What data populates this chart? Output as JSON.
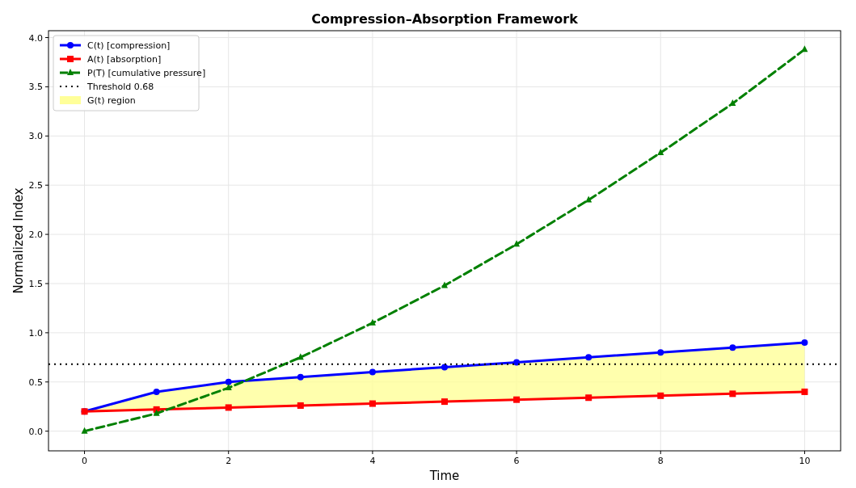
{
  "chart_data": {
    "type": "line",
    "title": "Compression–Absorption Framework",
    "xlabel": "Time",
    "ylabel": "Normalized Index",
    "x": [
      0,
      1,
      2,
      3,
      4,
      5,
      6,
      7,
      8,
      9,
      10
    ],
    "series": [
      {
        "name": "G(t) region",
        "type": "area",
        "color": "#ffff99",
        "values": [
          null,
          null,
          null,
          null,
          null,
          null,
          null,
          null,
          null,
          null,
          null
        ],
        "lower": [
          0.2,
          0.22,
          0.24,
          0.26,
          0.28,
          0.3,
          0.32,
          0.34,
          0.36,
          0.38,
          0.4
        ],
        "upper": [
          0.2,
          0.4,
          0.5,
          0.55,
          0.6,
          0.65,
          0.7,
          0.75,
          0.8,
          0.85,
          0.9
        ]
      },
      {
        "name": "C(t) [compression]",
        "color": "#0000ff",
        "marker": "circle",
        "line_style": "solid",
        "values": [
          0.2,
          0.4,
          0.5,
          0.55,
          0.6,
          0.65,
          0.7,
          0.75,
          0.8,
          0.85,
          0.9
        ]
      },
      {
        "name": "A(t) [absorption]",
        "color": "#ff0000",
        "marker": "square",
        "line_style": "solid",
        "values": [
          0.2,
          0.22,
          0.24,
          0.26,
          0.28,
          0.3,
          0.32,
          0.34,
          0.36,
          0.38,
          0.4
        ]
      },
      {
        "name": "P(T) [cumulative pressure]",
        "color": "#008000",
        "marker": "triangle",
        "line_style": "dashed",
        "values": [
          0,
          0.18,
          0.44,
          0.75,
          1.1,
          1.48,
          1.9,
          2.35,
          2.83,
          3.33,
          3.88
        ]
      }
    ],
    "ref_lines": [
      {
        "axis": "y",
        "value": 0.68,
        "label": "Threshold 0.68",
        "color": "#000000",
        "line_style": "dotted"
      }
    ],
    "xlim": [
      -0.5,
      10.5
    ],
    "xticks": [
      0,
      2,
      4,
      6,
      8,
      10
    ],
    "ylim": [
      -0.2,
      4.07
    ],
    "yticks": [
      {
        "value": 0,
        "label": "0.0"
      },
      {
        "value": 0.5,
        "label": "0.5"
      },
      {
        "value": 1,
        "label": "1.0"
      },
      {
        "value": 1.5,
        "label": "1.5"
      },
      {
        "value": 2,
        "label": "2.0"
      },
      {
        "value": 2.5,
        "label": "2.5"
      },
      {
        "value": 3,
        "label": "3.0"
      },
      {
        "value": 3.5,
        "label": "3.5"
      },
      {
        "value": 4,
        "label": "4.0"
      }
    ],
    "grid": true,
    "legend": "top left"
  }
}
